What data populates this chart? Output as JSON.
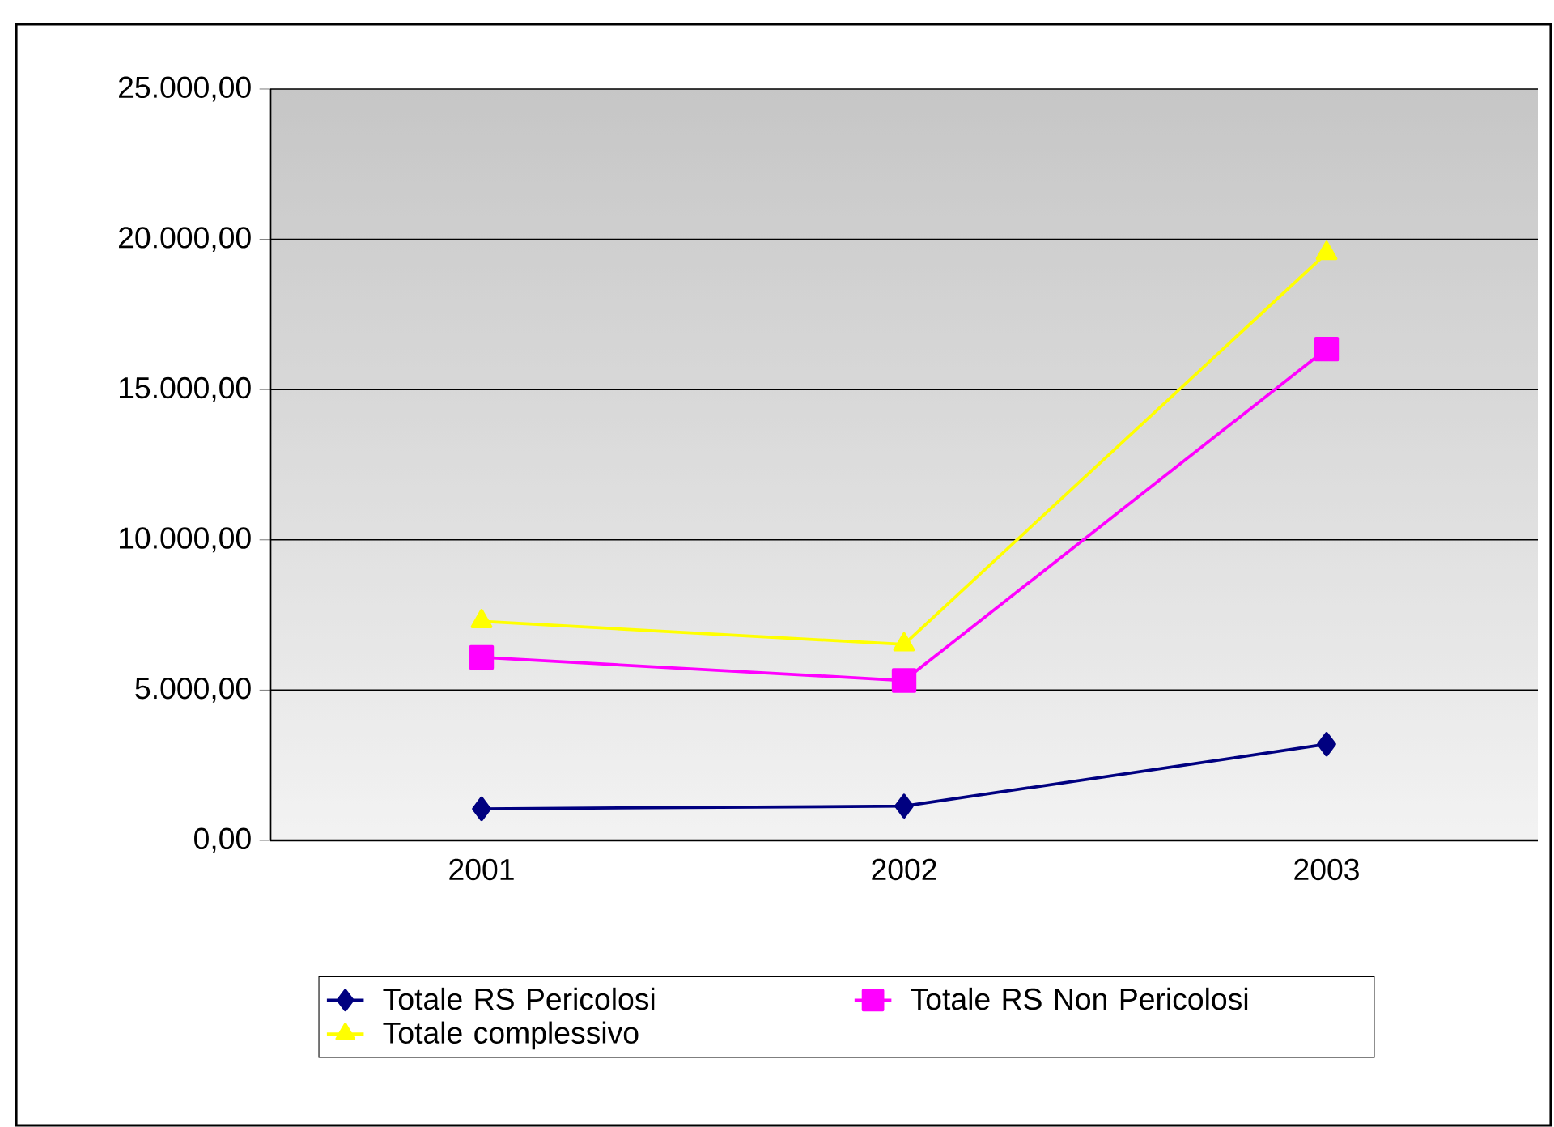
{
  "chart_data": {
    "type": "line",
    "categories": [
      "2001",
      "2002",
      "2003"
    ],
    "series": [
      {
        "name": "Totale RS Pericolosi",
        "color": "#000080",
        "marker": "diamond",
        "values": [
          1050,
          1140,
          3200
        ]
      },
      {
        "name": "Totale RS Non Pericolosi",
        "color": "#ff00ff",
        "marker": "square",
        "values": [
          6090,
          5320,
          16350
        ]
      },
      {
        "name": "Totale complessivo",
        "color": "#ffff00",
        "marker": "triangle",
        "values": [
          7290,
          6520,
          19540
        ]
      }
    ],
    "ylim": [
      0,
      25000
    ],
    "yticks": [
      {
        "value": 0,
        "label": "0,00"
      },
      {
        "value": 5000,
        "label": "5.000,00"
      },
      {
        "value": 10000,
        "label": "10.000,00"
      },
      {
        "value": 15000,
        "label": "15.000,00"
      },
      {
        "value": 20000,
        "label": "20.000,00"
      },
      {
        "value": 25000,
        "label": "25.000,00"
      }
    ],
    "grid": "y",
    "legend": "bottom",
    "line_style": "solid"
  }
}
